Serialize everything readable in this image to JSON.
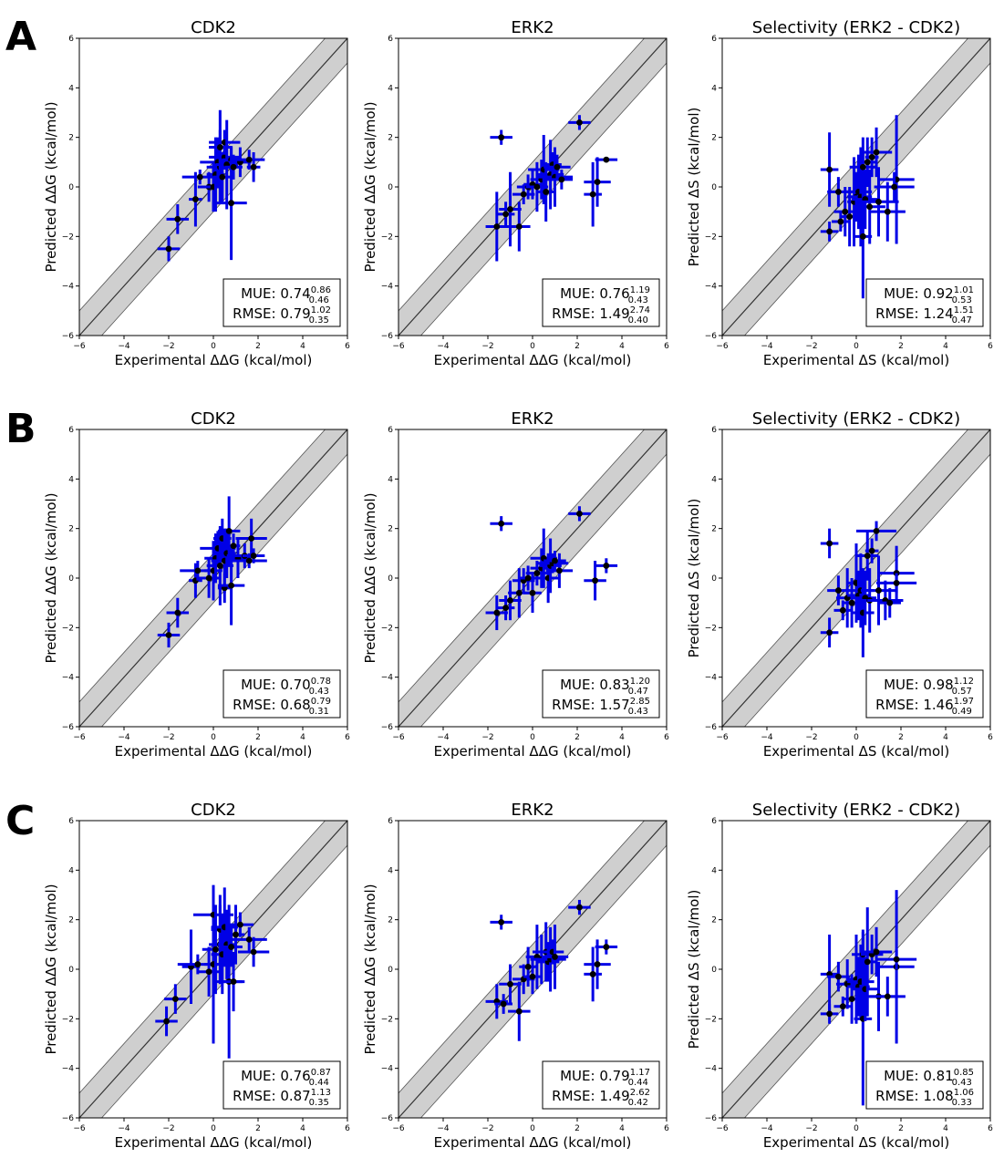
{
  "rows": [
    {
      "label": "A"
    },
    {
      "label": "B"
    },
    {
      "label": "C"
    }
  ],
  "chart_data": [
    {
      "type": "scatter",
      "row": "A",
      "title": "CDK2",
      "xlabel": "Experimental ΔΔG (kcal/mol)",
      "ylabel": "Predicted ΔΔG (kcal/mol)",
      "xlim": [
        -6,
        6
      ],
      "ylim": [
        -6,
        6
      ],
      "mue": {
        "value": "0.74",
        "upper": "0.86",
        "lower": "0.46"
      },
      "rmse": {
        "value": "0.79",
        "upper": "1.02",
        "lower": "0.35"
      },
      "points": [
        [
          -2.0,
          -2.5,
          0.5,
          0.5
        ],
        [
          -1.6,
          -1.3,
          0.5,
          0.6
        ],
        [
          -0.8,
          -0.5,
          0.3,
          1.1
        ],
        [
          -0.6,
          0.4,
          0.8,
          0.3
        ],
        [
          -0.2,
          0.0,
          0.5,
          0.6
        ],
        [
          0.0,
          0.0,
          0.4,
          1.0
        ],
        [
          0.1,
          0.5,
          0.4,
          1.5
        ],
        [
          0.2,
          1.0,
          0.8,
          1.0
        ],
        [
          0.3,
          0.8,
          0.6,
          1.5
        ],
        [
          0.3,
          1.6,
          0.5,
          1.5
        ],
        [
          0.4,
          0.4,
          0.4,
          1.0
        ],
        [
          0.5,
          1.2,
          0.7,
          0.5
        ],
        [
          0.5,
          1.8,
          0.7,
          0.5
        ],
        [
          0.6,
          0.9,
          0.5,
          1.8
        ],
        [
          0.8,
          1.1,
          0.4,
          0.5
        ],
        [
          0.8,
          -0.65,
          0.7,
          2.3
        ],
        [
          0.9,
          0.8,
          0.4,
          0.5
        ],
        [
          1.2,
          1.0,
          0.5,
          0.6
        ],
        [
          1.6,
          1.1,
          0.7,
          0.4
        ],
        [
          1.8,
          0.8,
          0.3,
          0.6
        ]
      ]
    },
    {
      "type": "scatter",
      "row": "A",
      "title": "ERK2",
      "xlabel": "Experimental ΔΔG (kcal/mol)",
      "ylabel": "Predicted ΔΔG (kcal/mol)",
      "xlim": [
        -6,
        6
      ],
      "ylim": [
        -6,
        6
      ],
      "mue": {
        "value": "0.76",
        "upper": "1.19",
        "lower": "0.43"
      },
      "rmse": {
        "value": "1.49",
        "upper": "2.74",
        "lower": "0.40"
      },
      "points": [
        [
          -1.4,
          2.0,
          0.5,
          0.3
        ],
        [
          2.1,
          2.6,
          0.5,
          0.3
        ],
        [
          3.3,
          1.1,
          0.5,
          0.1
        ],
        [
          2.9,
          0.2,
          0.6,
          1.0
        ],
        [
          2.7,
          -0.3,
          0.4,
          1.3
        ],
        [
          -1.6,
          -1.6,
          0.5,
          1.4
        ],
        [
          -1.2,
          -1.1,
          0.4,
          0.5
        ],
        [
          -1.0,
          -0.9,
          0.5,
          1.5
        ],
        [
          -0.6,
          -1.6,
          0.5,
          1.0
        ],
        [
          -0.4,
          -0.3,
          0.5,
          0.4
        ],
        [
          -0.2,
          0.0,
          0.5,
          0.5
        ],
        [
          0.0,
          0.1,
          0.4,
          0.6
        ],
        [
          0.2,
          0.0,
          0.5,
          1.0
        ],
        [
          0.4,
          0.3,
          0.5,
          0.8
        ],
        [
          0.5,
          0.7,
          0.7,
          1.4
        ],
        [
          0.6,
          -0.2,
          0.4,
          1.2
        ],
        [
          0.8,
          0.5,
          0.6,
          1.4
        ],
        [
          0.9,
          0.9,
          0.4,
          0.5
        ],
        [
          1.0,
          0.4,
          0.8,
          1.2
        ],
        [
          1.1,
          0.8,
          0.6,
          0.5
        ],
        [
          1.3,
          0.3,
          0.5,
          0.4
        ]
      ]
    },
    {
      "type": "scatter",
      "row": "A",
      "title": "Selectivity (ERK2 - CDK2)",
      "xlabel": "Experimental ΔS (kcal/mol)",
      "ylabel": "Predicted ΔS (kcal/mol)",
      "xlim": [
        -6,
        6
      ],
      "ylim": [
        -6,
        6
      ],
      "mue": {
        "value": "0.92",
        "upper": "1.01",
        "lower": "0.53"
      },
      "rmse": {
        "value": "1.24",
        "upper": "1.51",
        "lower": "0.47"
      },
      "points": [
        [
          -1.2,
          0.7,
          0.4,
          1.5
        ],
        [
          -1.2,
          -1.8,
          0.4,
          0.4
        ],
        [
          -0.8,
          -0.2,
          0.5,
          0.6
        ],
        [
          -0.7,
          -1.4,
          0.4,
          0.4
        ],
        [
          -0.5,
          -1.0,
          0.5,
          1.0
        ],
        [
          -0.3,
          -1.2,
          0.4,
          1.2
        ],
        [
          -0.1,
          -0.6,
          0.3,
          1.8
        ],
        [
          0.0,
          -0.4,
          0.4,
          1.0
        ],
        [
          0.1,
          -0.2,
          0.6,
          1.5
        ],
        [
          0.2,
          -0.4,
          0.5,
          2.0
        ],
        [
          0.3,
          0.8,
          0.6,
          1.2
        ],
        [
          0.3,
          -2.0,
          0.4,
          2.5
        ],
        [
          0.4,
          -0.5,
          0.6,
          1.2
        ],
        [
          0.5,
          1.0,
          0.4,
          1.0
        ],
        [
          0.6,
          -0.8,
          0.7,
          1.5
        ],
        [
          0.7,
          1.2,
          0.3,
          0.8
        ],
        [
          0.9,
          1.4,
          0.7,
          1.0
        ],
        [
          1.0,
          -0.6,
          0.9,
          1.4
        ],
        [
          1.4,
          -1.0,
          0.8,
          1.2
        ],
        [
          1.8,
          0.3,
          0.8,
          2.6
        ],
        [
          1.7,
          0.0,
          0.9,
          0.6
        ]
      ]
    },
    {
      "type": "scatter",
      "row": "B",
      "title": "CDK2",
      "xlabel": "Experimental ΔΔG (kcal/mol)",
      "ylabel": "Predicted ΔΔG (kcal/mol)",
      "xlim": [
        -6,
        6
      ],
      "ylim": [
        -6,
        6
      ],
      "mue": {
        "value": "0.70",
        "upper": "0.78",
        "lower": "0.43"
      },
      "rmse": {
        "value": "0.68",
        "upper": "0.79",
        "lower": "0.31"
      },
      "points": [
        [
          -2.0,
          -2.3,
          0.5,
          0.5
        ],
        [
          -1.6,
          -1.4,
          0.5,
          0.6
        ],
        [
          -0.8,
          -0.1,
          0.3,
          0.7
        ],
        [
          -0.7,
          0.3,
          0.8,
          0.4
        ],
        [
          -0.2,
          0.0,
          0.5,
          0.8
        ],
        [
          0.0,
          0.3,
          0.4,
          1.2
        ],
        [
          0.1,
          0.8,
          0.5,
          1.0
        ],
        [
          0.2,
          1.2,
          0.8,
          0.7
        ],
        [
          0.3,
          0.5,
          0.6,
          1.6
        ],
        [
          0.4,
          1.6,
          0.4,
          0.8
        ],
        [
          0.5,
          0.7,
          0.6,
          1.3
        ],
        [
          0.5,
          -0.4,
          0.3,
          0.6
        ],
        [
          0.6,
          1.0,
          0.4,
          1.0
        ],
        [
          0.7,
          1.9,
          0.5,
          1.4
        ],
        [
          0.8,
          -0.3,
          0.6,
          1.6
        ],
        [
          0.9,
          1.3,
          0.3,
          0.5
        ],
        [
          1.1,
          0.8,
          0.5,
          0.8
        ],
        [
          1.4,
          0.9,
          0.8,
          0.5
        ],
        [
          1.7,
          1.6,
          0.7,
          0.8
        ],
        [
          1.8,
          0.9,
          0.5,
          0.3
        ],
        [
          1.6,
          0.7,
          0.8,
          0.3
        ]
      ]
    },
    {
      "type": "scatter",
      "row": "B",
      "title": "ERK2",
      "xlabel": "Experimental ΔΔG (kcal/mol)",
      "ylabel": "Predicted ΔΔG (kcal/mol)",
      "xlim": [
        -6,
        6
      ],
      "ylim": [
        -6,
        6
      ],
      "mue": {
        "value": "0.83",
        "upper": "1.20",
        "lower": "0.47"
      },
      "rmse": {
        "value": "1.57",
        "upper": "2.85",
        "lower": "0.43"
      },
      "points": [
        [
          -1.4,
          2.2,
          0.5,
          0.3
        ],
        [
          2.1,
          2.6,
          0.5,
          0.3
        ],
        [
          3.3,
          0.5,
          0.5,
          0.3
        ],
        [
          2.8,
          -0.1,
          0.5,
          0.8
        ],
        [
          -1.6,
          -1.4,
          0.5,
          0.7
        ],
        [
          -1.2,
          -1.2,
          0.4,
          0.5
        ],
        [
          -1.0,
          -0.9,
          0.5,
          0.8
        ],
        [
          -0.6,
          -0.6,
          0.5,
          1.0
        ],
        [
          -0.4,
          -0.1,
          0.5,
          0.5
        ],
        [
          -0.2,
          0.0,
          0.4,
          0.5
        ],
        [
          0.0,
          -0.6,
          0.4,
          0.8
        ],
        [
          0.2,
          0.2,
          0.5,
          0.5
        ],
        [
          0.4,
          0.4,
          0.5,
          0.8
        ],
        [
          0.5,
          0.8,
          0.6,
          1.2
        ],
        [
          0.7,
          0.0,
          0.5,
          1.0
        ],
        [
          0.8,
          0.5,
          0.5,
          1.1
        ],
        [
          0.9,
          0.6,
          0.7,
          0.4
        ],
        [
          1.0,
          0.7,
          0.5,
          0.4
        ],
        [
          1.2,
          0.3,
          0.6,
          0.7
        ]
      ]
    },
    {
      "type": "scatter",
      "row": "B",
      "title": "Selectivity (ERK2 - CDK2)",
      "xlabel": "Experimental ΔS (kcal/mol)",
      "ylabel": "Predicted ΔS (kcal/mol)",
      "xlim": [
        -6,
        6
      ],
      "ylim": [
        -6,
        6
      ],
      "mue": {
        "value": "0.98",
        "upper": "1.12",
        "lower": "0.57"
      },
      "rmse": {
        "value": "1.46",
        "upper": "1.97",
        "lower": "0.49"
      },
      "points": [
        [
          -1.2,
          1.4,
          0.4,
          0.6
        ],
        [
          -1.2,
          -2.2,
          0.4,
          0.6
        ],
        [
          -0.8,
          -0.5,
          0.5,
          0.6
        ],
        [
          -0.6,
          -1.3,
          0.4,
          0.4
        ],
        [
          -0.4,
          -0.8,
          0.5,
          1.2
        ],
        [
          -0.2,
          -1.0,
          0.4,
          1.0
        ],
        [
          0.0,
          -0.2,
          0.4,
          1.6
        ],
        [
          0.1,
          -0.7,
          0.5,
          1.0
        ],
        [
          0.2,
          -0.5,
          0.6,
          1.5
        ],
        [
          0.3,
          -1.4,
          0.5,
          1.8
        ],
        [
          0.4,
          -0.8,
          0.5,
          1.1
        ],
        [
          0.5,
          0.9,
          0.5,
          1.0
        ],
        [
          0.6,
          -0.9,
          0.5,
          1.3
        ],
        [
          0.7,
          1.1,
          0.3,
          0.5
        ],
        [
          0.9,
          1.9,
          0.9,
          0.4
        ],
        [
          1.0,
          -0.5,
          0.8,
          1.4
        ],
        [
          1.3,
          -0.9,
          0.8,
          0.8
        ],
        [
          1.5,
          -1.0,
          0.5,
          0.6
        ],
        [
          1.8,
          0.2,
          0.8,
          1.1
        ],
        [
          1.8,
          -0.2,
          0.9,
          0.4
        ]
      ]
    },
    {
      "type": "scatter",
      "row": "C",
      "title": "CDK2",
      "xlabel": "Experimental ΔΔG (kcal/mol)",
      "ylabel": "Predicted ΔΔG (kcal/mol)",
      "xlim": [
        -6,
        6
      ],
      "ylim": [
        -6,
        6
      ],
      "mue": {
        "value": "0.76",
        "upper": "0.87",
        "lower": "0.44"
      },
      "rmse": {
        "value": "0.87",
        "upper": "1.13",
        "lower": "0.35"
      },
      "points": [
        [
          -2.1,
          -2.1,
          0.5,
          0.6
        ],
        [
          -1.7,
          -1.2,
          0.5,
          0.6
        ],
        [
          -1.0,
          0.1,
          0.4,
          1.5
        ],
        [
          -0.7,
          0.2,
          0.9,
          0.4
        ],
        [
          -0.2,
          -0.1,
          0.5,
          1.0
        ],
        [
          0.0,
          0.2,
          0.4,
          3.2
        ],
        [
          0.0,
          2.2,
          0.9,
          1.0
        ],
        [
          0.1,
          0.8,
          0.6,
          1.8
        ],
        [
          0.3,
          1.0,
          0.5,
          1.6
        ],
        [
          0.3,
          1.6,
          0.4,
          1.4
        ],
        [
          0.4,
          0.6,
          0.5,
          1.6
        ],
        [
          0.5,
          1.7,
          0.6,
          1.6
        ],
        [
          0.6,
          1.0,
          0.4,
          1.4
        ],
        [
          0.7,
          -0.5,
          0.6,
          3.1
        ],
        [
          0.8,
          0.9,
          0.5,
          0.8
        ],
        [
          0.9,
          -0.5,
          0.5,
          1.2
        ],
        [
          1.0,
          1.4,
          0.4,
          1.2
        ],
        [
          1.2,
          1.8,
          0.6,
          0.5
        ],
        [
          1.6,
          1.2,
          0.8,
          0.5
        ],
        [
          1.8,
          0.7,
          0.7,
          0.6
        ]
      ]
    },
    {
      "type": "scatter",
      "row": "C",
      "title": "ERK2",
      "xlabel": "Experimental ΔΔG (kcal/mol)",
      "ylabel": "Predicted ΔΔG (kcal/mol)",
      "xlim": [
        -6,
        6
      ],
      "ylim": [
        -6,
        6
      ],
      "mue": {
        "value": "0.79",
        "upper": "1.17",
        "lower": "0.44"
      },
      "rmse": {
        "value": "1.49",
        "upper": "2.62",
        "lower": "0.42"
      },
      "points": [
        [
          -1.4,
          1.9,
          0.5,
          0.3
        ],
        [
          2.1,
          2.5,
          0.5,
          0.3
        ],
        [
          3.3,
          0.9,
          0.5,
          0.3
        ],
        [
          2.9,
          0.2,
          0.6,
          1.0
        ],
        [
          2.7,
          -0.2,
          0.4,
          1.1
        ],
        [
          -1.6,
          -1.3,
          0.5,
          0.7
        ],
        [
          -1.3,
          -1.4,
          0.4,
          0.4
        ],
        [
          -1.0,
          -0.6,
          0.5,
          0.8
        ],
        [
          -0.6,
          -1.7,
          0.5,
          1.2
        ],
        [
          -0.4,
          -0.4,
          0.5,
          0.6
        ],
        [
          -0.2,
          0.1,
          0.4,
          0.8
        ],
        [
          0.0,
          -0.3,
          0.4,
          0.7
        ],
        [
          0.2,
          0.5,
          0.5,
          1.3
        ],
        [
          0.4,
          0.4,
          0.5,
          1.0
        ],
        [
          0.6,
          0.7,
          0.6,
          1.2
        ],
        [
          0.7,
          0.3,
          0.5,
          0.8
        ],
        [
          0.8,
          0.4,
          0.7,
          1.3
        ],
        [
          0.9,
          0.7,
          0.5,
          0.5
        ],
        [
          1.0,
          0.5,
          0.6,
          1.3
        ]
      ]
    },
    {
      "type": "scatter",
      "row": "C",
      "title": "Selectivity (ERK2 - CDK2)",
      "xlabel": "Experimental ΔS (kcal/mol)",
      "ylabel": "Predicted ΔS (kcal/mol)",
      "xlim": [
        -6,
        6
      ],
      "ylim": [
        -6,
        6
      ],
      "mue": {
        "value": "0.81",
        "upper": "0.85",
        "lower": "0.43"
      },
      "rmse": {
        "value": "1.08",
        "upper": "1.06",
        "lower": "0.33"
      },
      "points": [
        [
          -1.2,
          -0.2,
          0.4,
          1.6
        ],
        [
          -1.2,
          -1.8,
          0.4,
          0.4
        ],
        [
          -0.8,
          -0.3,
          0.5,
          0.6
        ],
        [
          -0.6,
          -1.5,
          0.4,
          0.4
        ],
        [
          -0.4,
          -0.6,
          0.5,
          1.0
        ],
        [
          -0.2,
          -1.2,
          0.4,
          1.0
        ],
        [
          0.0,
          -0.4,
          0.4,
          1.8
        ],
        [
          0.1,
          -0.7,
          0.5,
          1.2
        ],
        [
          0.2,
          -0.5,
          0.6,
          1.5
        ],
        [
          0.3,
          -2.0,
          0.4,
          3.5
        ],
        [
          0.3,
          0.6,
          0.5,
          1.0
        ],
        [
          0.4,
          -0.8,
          0.6,
          1.3
        ],
        [
          0.5,
          0.3,
          0.4,
          2.2
        ],
        [
          0.7,
          0.6,
          0.5,
          0.8
        ],
        [
          0.9,
          0.7,
          0.7,
          1.0
        ],
        [
          1.0,
          -1.1,
          0.8,
          1.4
        ],
        [
          1.4,
          -1.1,
          0.8,
          0.8
        ],
        [
          1.8,
          0.1,
          0.8,
          3.1
        ],
        [
          1.8,
          0.4,
          0.9,
          0.4
        ]
      ]
    }
  ]
}
